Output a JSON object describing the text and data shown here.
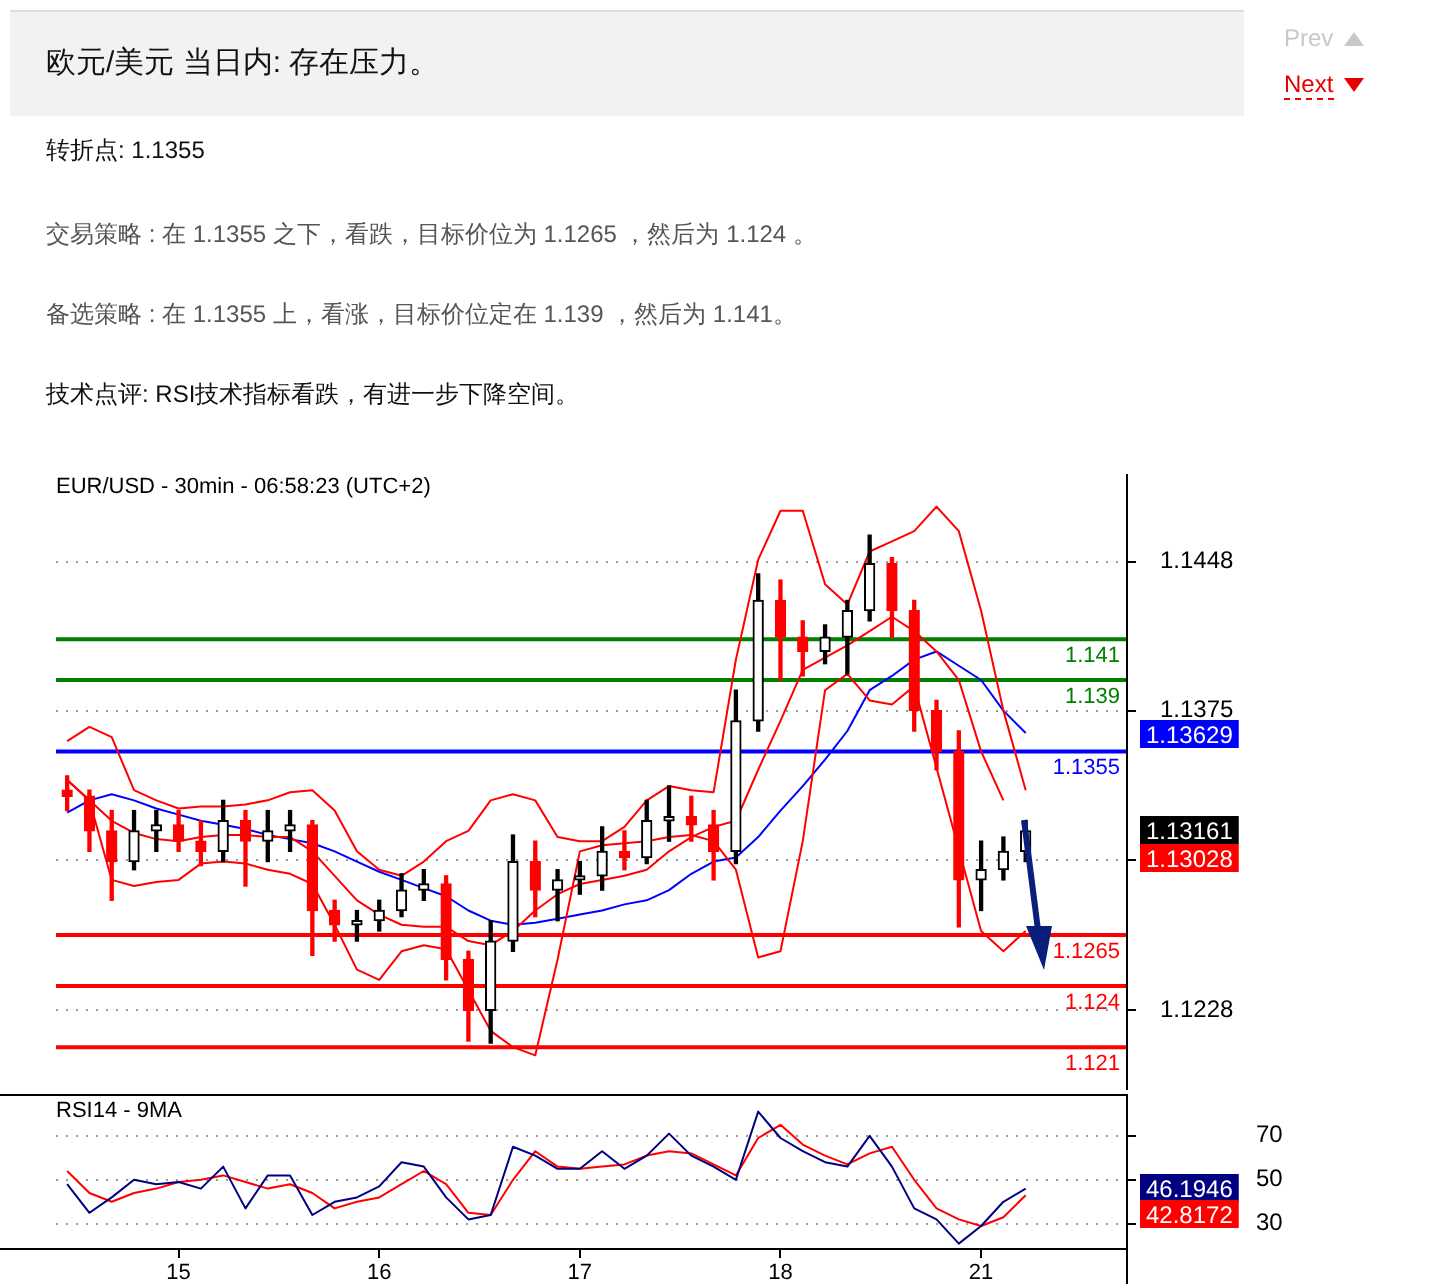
{
  "chart_data": [
    {
      "type": "other",
      "title": "欧元/美元 当日内: 存在压力。",
      "annotations": [
        "Prev",
        "Next",
        "转折点: 1.1355",
        "交易策略 : 在 1.1355 之下，看跌，目标价位为 1.1265 ，然后为 1.124 。",
        "备选策略 : 在 1.1355 上，看涨，目标价位定在 1.139 ，然后为 1.141。",
        "技术点评: RSI技术指标看跌，有进一步下降空间。"
      ]
    },
    {
      "type": "candlestick",
      "title": "EUR/USD - 30min - 06:58:23 (UTC+2)",
      "colors": [
        "#ff0000",
        "#ff0000",
        "#ff0000",
        "#000000",
        "#000000",
        "#ff0000",
        "#ff0000",
        "#000000",
        "#ff0000",
        "#000000",
        "#000000",
        "#ff0000",
        "#ff0000",
        "#000000",
        "#000000",
        "#000000",
        "#000000",
        "#ff0000",
        "#ff0000",
        "#000000",
        "#000000",
        "#ff0000",
        "#000000",
        "#000000",
        "#000000",
        "#ff0000",
        "#000000",
        "#000000",
        "#ff0000",
        "#ff0000",
        "#000000",
        "#000000",
        "#ff0000",
        "#ff0000",
        "#000000",
        "#000000",
        "#000000",
        "#ff0000",
        "#ff0000",
        "#ff0000",
        "#ff0000",
        "#000000",
        "#000000",
        "#000000",
        null,
        null,
        null,
        null
      ],
      "categories": [
        null,
        null,
        null,
        null,
        null,
        "15",
        null,
        null,
        null,
        null,
        null,
        null,
        null,
        null,
        "16",
        null,
        null,
        null,
        null,
        null,
        null,
        null,
        null,
        "17",
        null,
        null,
        null,
        null,
        null,
        null,
        null,
        null,
        "18",
        null,
        null,
        null,
        null,
        null,
        null,
        null,
        null,
        "21",
        null,
        null,
        null,
        null,
        null,
        null
      ],
      "ohlc": [
        [
          1.1336,
          1.1343,
          1.1326,
          1.1333
        ],
        [
          1.1333,
          1.1336,
          1.1306,
          1.1316
        ],
        [
          1.1316,
          1.1326,
          1.1282,
          1.1301
        ],
        [
          1.1301,
          1.1326,
          1.1297,
          1.1316
        ],
        [
          1.1316,
          1.1326,
          1.1306,
          1.1319
        ],
        [
          1.1319,
          1.1326,
          1.1306,
          1.1311
        ],
        [
          1.1311,
          1.1321,
          1.1299,
          1.1306
        ],
        [
          1.1306,
          1.1331,
          1.1301,
          1.1321
        ],
        [
          1.1321,
          1.1326,
          1.1289,
          1.1311
        ],
        [
          1.1311,
          1.1326,
          1.1301,
          1.1316
        ],
        [
          1.1316,
          1.1326,
          1.1306,
          1.1319
        ],
        [
          1.1319,
          1.1321,
          1.1255,
          1.1277
        ],
        [
          1.1277,
          1.1282,
          1.1262,
          1.127
        ],
        [
          1.127,
          1.1277,
          1.1262,
          1.1272
        ],
        [
          1.1272,
          1.1282,
          1.1267,
          1.1277
        ],
        [
          1.1277,
          1.1295,
          1.1274,
          1.1287
        ],
        [
          1.1287,
          1.1297,
          1.1282,
          1.129
        ],
        [
          1.129,
          1.1294,
          1.1243,
          1.1253
        ],
        [
          1.1253,
          1.1257,
          1.1213,
          1.1228
        ],
        [
          1.1228,
          1.1272,
          1.1212,
          1.1262
        ],
        [
          1.1262,
          1.1314,
          1.1257,
          1.1301
        ],
        [
          1.1301,
          1.1311,
          1.1274,
          1.1287
        ],
        [
          1.1287,
          1.1297,
          1.1272,
          1.1292
        ],
        [
          1.1292,
          1.1301,
          1.1285,
          1.1294
        ],
        [
          1.1294,
          1.1318,
          1.1287,
          1.1306
        ],
        [
          1.1306,
          1.1316,
          1.1297,
          1.1303
        ],
        [
          1.1303,
          1.1331,
          1.13,
          1.1321
        ],
        [
          1.1321,
          1.1338,
          1.1311,
          1.1323
        ],
        [
          1.1323,
          1.1333,
          1.1311,
          1.1319
        ],
        [
          1.1319,
          1.1326,
          1.1292,
          1.1306
        ],
        [
          1.1306,
          1.1385,
          1.13,
          1.137
        ],
        [
          1.137,
          1.1442,
          1.1365,
          1.1429
        ],
        [
          1.1429,
          1.1439,
          1.139,
          1.1411
        ],
        [
          1.1411,
          1.1419,
          1.1392,
          1.1404
        ],
        [
          1.1404,
          1.1417,
          1.1398,
          1.1411
        ],
        [
          1.1411,
          1.1429,
          1.1393,
          1.1424
        ],
        [
          1.1424,
          1.1461,
          1.1419,
          1.1447
        ],
        [
          1.1447,
          1.145,
          1.1411,
          1.1424
        ],
        [
          1.1424,
          1.1429,
          1.1365,
          1.1375
        ],
        [
          1.1375,
          1.138,
          1.1346,
          1.1355
        ],
        [
          1.1355,
          1.1365,
          1.1269,
          1.1292
        ],
        [
          1.1292,
          1.1311,
          1.1277,
          1.1297
        ],
        [
          1.1297,
          1.1313,
          1.1292,
          1.1306
        ],
        [
          1.1306,
          1.1321,
          1.1301,
          1.1316
        ],
        null,
        null,
        null,
        null
      ],
      "series": [
        {
          "type": "line",
          "color": "#ff0000",
          "values": [
            1.136,
            1.1367,
            1.1362,
            1.1336,
            1.1331,
            1.1327,
            1.1328,
            1.1328,
            1.1329,
            1.1331,
            1.1335,
            1.1336,
            1.1326,
            1.1306,
            1.1297,
            1.1294,
            1.1301,
            1.1311,
            1.1316,
            1.1331,
            1.1334,
            1.1331,
            1.1313,
            1.1311,
            1.1311,
            1.1318,
            1.1331,
            1.1338,
            1.1336,
            1.1335,
            1.14,
            1.1449,
            1.1473,
            1.1473,
            1.1437,
            1.1427,
            1.1453,
            1.1458,
            1.1463,
            1.1475,
            1.1463,
            1.1424,
            1.1375,
            1.1336,
            null,
            null,
            null,
            null
          ]
        },
        {
          "type": "line",
          "color": "#ff0000",
          "values": [
            1.1341,
            1.1331,
            1.1321,
            1.1315,
            1.1312,
            1.1311,
            1.1313,
            1.1314,
            1.1314,
            1.1313,
            1.1313,
            1.1306,
            1.1294,
            1.1282,
            1.1275,
            1.127,
            1.1269,
            1.1269,
            1.1262,
            1.126,
            1.1267,
            1.1277,
            1.1285,
            1.129,
            1.1292,
            1.1294,
            1.1297,
            1.1306,
            1.1313,
            1.1318,
            1.1321,
            1.1346,
            1.137,
            1.1395,
            1.1401,
            1.1407,
            1.1414,
            1.1421,
            1.1414,
            1.1404,
            1.139,
            1.1355,
            1.1331,
            null,
            null,
            null,
            null,
            null
          ]
        },
        {
          "type": "line",
          "color": "#ff0000",
          "values": [
            1.1341,
            1.1331,
            1.1292,
            1.1289,
            1.1291,
            1.1292,
            1.13,
            1.1301,
            1.13,
            1.1297,
            1.1295,
            1.129,
            1.127,
            1.1248,
            1.1243,
            1.1257,
            1.126,
            1.1258,
            1.1238,
            1.1218,
            1.121,
            1.1206,
            1.1253,
            1.1306,
            1.1309,
            1.131,
            1.1311,
            1.1313,
            1.1314,
            1.1311,
            1.1297,
            1.1254,
            1.1257,
            1.1311,
            1.1385,
            1.1393,
            1.138,
            1.1378,
            1.1387,
            null,
            null,
            1.1267,
            1.1257,
            1.1267,
            null,
            null,
            null,
            null
          ]
        },
        {
          "type": "line",
          "color": "#0000ff",
          "values": [
            1.1325,
            1.1331,
            1.1334,
            1.1331,
            1.1327,
            1.1324,
            1.1321,
            1.1319,
            1.1317,
            1.1314,
            1.1312,
            1.131,
            1.1306,
            1.1301,
            1.1296,
            1.1292,
            1.1288,
            1.1284,
            1.1277,
            1.1272,
            1.127,
            1.1271,
            1.1273,
            1.1275,
            1.1277,
            1.128,
            1.1282,
            1.1287,
            1.1295,
            1.1301,
            1.1303,
            1.1313,
            1.1326,
            1.1338,
            1.1351,
            1.1365,
            1.1385,
            1.1392,
            1.14,
            1.1404,
            1.1397,
            1.139,
            1.1375,
            1.1364,
            null,
            null,
            null,
            null
          ]
        }
      ],
      "ylim": [
        1.1189,
        1.1491
      ],
      "yticks": [
        1.1448,
        1.1375,
        {
          "value": 1.1302,
          "label": null
        },
        1.1228
      ],
      "grid": "y",
      "legend": false,
      "tick_labels": "y",
      "marker": "none",
      "ref_lines": [
        {
          "axis": "y",
          "value": 1.141,
          "label": "1.141",
          "color": "#008000"
        },
        {
          "axis": "y",
          "value": 1.139,
          "label": "1.139",
          "color": "#008000"
        },
        {
          "axis": "y",
          "value": 1.1355,
          "label": "1.1355",
          "color": "#0000ff"
        },
        {
          "axis": "y",
          "value": 1.1265,
          "label": "1.1265",
          "color": "#ff0000"
        },
        {
          "axis": "y",
          "value": 1.124,
          "label": "1.124",
          "color": "#ff0000"
        },
        {
          "axis": "y",
          "value": 1.121,
          "label": "1.121",
          "color": "#ff0000"
        }
      ],
      "annotations": [
        "1.13629",
        "1.13161",
        "1.13028"
      ]
    },
    {
      "type": "line",
      "title": "RSI14 - 9MA",
      "categories": [
        null,
        null,
        null,
        null,
        null,
        "15",
        null,
        null,
        null,
        null,
        null,
        null,
        null,
        null,
        "16",
        null,
        null,
        null,
        null,
        null,
        null,
        null,
        null,
        "17",
        null,
        null,
        null,
        null,
        null,
        null,
        null,
        null,
        "18",
        null,
        null,
        null,
        null,
        null,
        null,
        null,
        null,
        "21",
        null,
        null,
        null,
        null,
        null,
        null
      ],
      "series": [
        {
          "color": "#000080",
          "values": [
            48,
            35,
            42,
            50,
            48,
            49,
            46,
            56,
            37,
            52,
            52,
            34,
            40,
            42,
            47,
            58,
            56,
            42,
            32,
            34,
            65,
            61,
            55,
            55,
            63,
            55,
            61,
            71,
            61,
            56,
            50,
            81,
            69,
            63,
            58,
            56,
            70,
            56,
            37,
            32,
            21,
            29,
            40,
            46,
            null,
            null,
            null,
            null
          ]
        },
        {
          "color": "#ff0000",
          "values": [
            54,
            44,
            40,
            44,
            46,
            49,
            50,
            52,
            49,
            46,
            48,
            44,
            37,
            40,
            42,
            48,
            54,
            48,
            35,
            34,
            50,
            63,
            56,
            55,
            56,
            57,
            61,
            63,
            62,
            57,
            52,
            69,
            75,
            66,
            61,
            57,
            62,
            65,
            50,
            37,
            32,
            29,
            33,
            43,
            null,
            null,
            null,
            null
          ]
        }
      ],
      "ylim": [
        19,
        89
      ],
      "yticks": [
        70,
        50,
        30
      ],
      "grid": "y",
      "legend": false,
      "marker": "none",
      "annotations": [
        "46.1946",
        "42.8172"
      ]
    }
  ]
}
